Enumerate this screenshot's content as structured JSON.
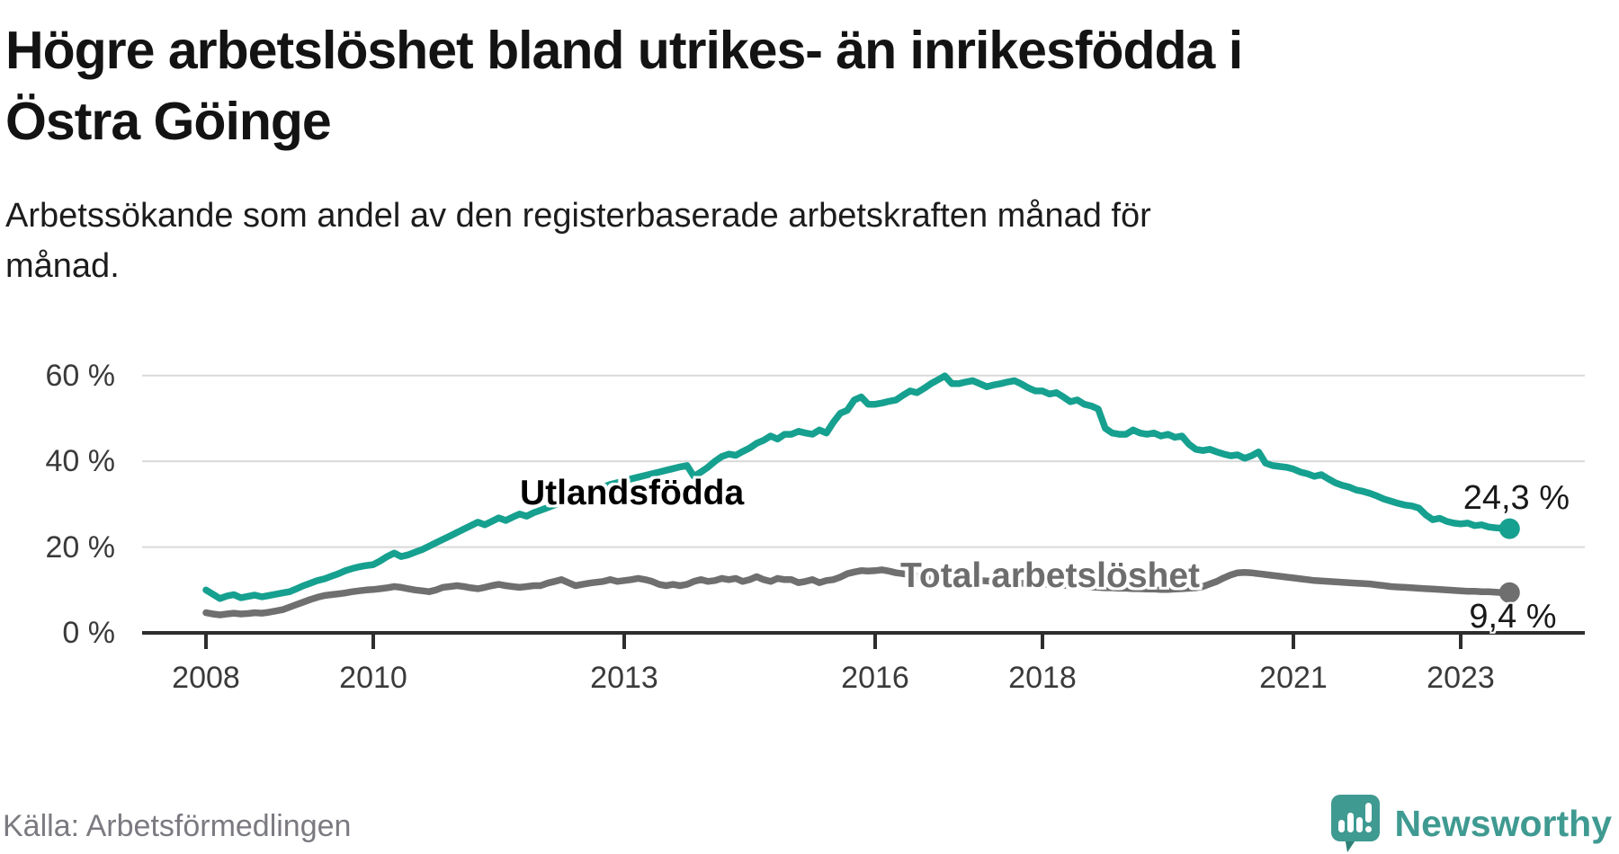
{
  "header": {
    "title_line1": "Högre arbetslöshet bland utrikes- än inrikesfödda i",
    "title_line2": "Östra Göinge",
    "subtitle_line1": "Arbetssökande som andel av den registerbaserade arbetskraften månad för",
    "subtitle_line2": "månad."
  },
  "footer": {
    "source": "Källa: Arbetsförmedlingen",
    "brand": "Newsworthy",
    "brand_color": "#3f9a91",
    "brand_icon": "speech-bubble-bar-chart"
  },
  "chart_data": {
    "type": "line",
    "title": "Högre arbetslöshet bland utrikes- än inrikesfödda i Östra Göinge",
    "subtitle": "Arbetssökande som andel av den registerbaserade arbetskraften månad för månad.",
    "unit": "%",
    "x_start_year": 2008,
    "x_start_month": 1,
    "x_end_year": 2023,
    "x_end_month": 8,
    "points_per_year": 12,
    "ylim": [
      0,
      63
    ],
    "grid": "horizontal",
    "grid_color": "#d9d9d9",
    "axis_color": "#2e2e2e",
    "y_ticks": [
      {
        "value": 0,
        "label": "0 %"
      },
      {
        "value": 20,
        "label": "20 %"
      },
      {
        "value": 40,
        "label": "40 %"
      },
      {
        "value": 60,
        "label": "60 %"
      }
    ],
    "x_ticks": [
      {
        "year": 2008,
        "label": "2008"
      },
      {
        "year": 2010,
        "label": "2010"
      },
      {
        "year": 2013,
        "label": "2013"
      },
      {
        "year": 2016,
        "label": "2016"
      },
      {
        "year": 2018,
        "label": "2018"
      },
      {
        "year": 2021,
        "label": "2021"
      },
      {
        "year": 2023,
        "label": "2023"
      }
    ],
    "series": [
      {
        "name": "Utlandsfödda",
        "color": "#16a08f",
        "end_label": "24,3 %",
        "end_value": 24.3,
        "values": [
          10.0,
          9.0,
          8.0,
          8.6,
          8.9,
          8.2,
          8.5,
          8.8,
          8.4,
          8.7,
          9.0,
          9.3,
          9.6,
          10.3,
          11.0,
          11.6,
          12.2,
          12.6,
          13.2,
          13.8,
          14.5,
          15.0,
          15.4,
          15.7,
          15.9,
          16.8,
          17.8,
          18.6,
          17.8,
          18.2,
          18.8,
          19.4,
          20.2,
          21.0,
          21.8,
          22.6,
          23.4,
          24.2,
          25.0,
          25.8,
          25.2,
          26.0,
          26.8,
          26.2,
          27.0,
          27.7,
          27.2,
          28.0,
          28.6,
          29.2,
          29.8,
          30.4,
          31.0,
          31.6,
          32.2,
          32.8,
          33.4,
          34.0,
          34.6,
          35.0,
          35.5,
          35.9,
          36.3,
          36.7,
          37.1,
          37.5,
          37.9,
          38.3,
          38.7,
          39.0,
          36.5,
          37.5,
          38.6,
          40.0,
          41.1,
          41.7,
          41.4,
          42.3,
          43.1,
          44.2,
          44.9,
          45.9,
          45.2,
          46.3,
          46.3,
          47.0,
          46.6,
          46.3,
          47.3,
          46.6,
          49.1,
          51.2,
          51.9,
          54.3,
          55.0,
          53.3,
          53.3,
          53.6,
          54.0,
          54.3,
          55.4,
          56.4,
          56.0,
          57.0,
          58.1,
          59.0,
          59.9,
          58.1,
          58.1,
          58.5,
          58.8,
          58.1,
          57.4,
          57.8,
          58.1,
          58.5,
          58.8,
          58.0,
          57.1,
          56.4,
          56.4,
          55.7,
          56.0,
          55.0,
          53.9,
          54.3,
          53.3,
          52.9,
          52.2,
          47.7,
          46.6,
          46.3,
          46.3,
          47.3,
          46.6,
          46.3,
          46.6,
          45.9,
          46.3,
          45.6,
          45.9,
          44.0,
          42.8,
          42.5,
          42.8,
          42.2,
          41.7,
          41.3,
          41.5,
          40.7,
          41.3,
          42.2,
          39.6,
          39.0,
          38.8,
          38.6,
          38.2,
          37.5,
          37.1,
          36.5,
          36.9,
          35.9,
          35.0,
          34.4,
          34.0,
          33.3,
          33.0,
          32.5,
          31.9,
          31.2,
          30.7,
          30.2,
          29.8,
          29.6,
          29.1,
          27.5,
          26.4,
          26.7,
          26.0,
          25.6,
          25.4,
          25.6,
          25.0,
          25.2,
          24.7,
          24.5,
          24.4,
          24.3
        ]
      },
      {
        "name": "Total arbetslöshet",
        "color": "#6f6f6f",
        "end_label": "9,4 %",
        "end_value": 9.4,
        "values": [
          4.7,
          4.4,
          4.2,
          4.4,
          4.6,
          4.4,
          4.5,
          4.7,
          4.6,
          4.8,
          5.1,
          5.4,
          6.0,
          6.6,
          7.2,
          7.8,
          8.3,
          8.7,
          8.9,
          9.1,
          9.3,
          9.6,
          9.8,
          10.0,
          10.1,
          10.3,
          10.5,
          10.8,
          10.6,
          10.3,
          10.0,
          9.8,
          9.6,
          10.0,
          10.6,
          10.8,
          11.0,
          10.8,
          10.5,
          10.3,
          10.6,
          11.0,
          11.3,
          11.0,
          10.8,
          10.6,
          10.8,
          11.0,
          11.0,
          11.6,
          12.0,
          12.4,
          11.7,
          11.0,
          11.3,
          11.6,
          11.8,
          12.0,
          12.4,
          12.0,
          12.2,
          12.4,
          12.7,
          12.4,
          12.0,
          11.3,
          11.0,
          11.3,
          11.0,
          11.3,
          12.0,
          12.4,
          12.0,
          12.2,
          12.7,
          12.4,
          12.7,
          12.0,
          12.4,
          13.1,
          12.4,
          12.0,
          12.7,
          12.4,
          12.4,
          11.7,
          12.0,
          12.4,
          11.7,
          12.2,
          12.4,
          13.0,
          13.8,
          14.2,
          14.5,
          14.4,
          14.5,
          14.7,
          14.4,
          14.0,
          13.8,
          13.5,
          13.2,
          13.0,
          12.8,
          12.7,
          12.6,
          12.5,
          12.5,
          12.4,
          12.3,
          12.2,
          12.1,
          12.0,
          11.9,
          11.8,
          11.7,
          11.6,
          11.5,
          11.5,
          11.4,
          11.3,
          11.2,
          11.1,
          11.0,
          10.9,
          10.8,
          10.7,
          10.6,
          10.5,
          10.5,
          10.4,
          10.4,
          10.3,
          10.3,
          10.2,
          10.2,
          10.1,
          10.1,
          10.2,
          10.3,
          10.4,
          10.5,
          10.8,
          11.4,
          12.0,
          12.8,
          13.5,
          14.0,
          14.1,
          14.0,
          13.8,
          13.6,
          13.4,
          13.2,
          13.0,
          12.8,
          12.6,
          12.4,
          12.2,
          12.1,
          12.0,
          11.9,
          11.8,
          11.7,
          11.6,
          11.5,
          11.4,
          11.2,
          11.0,
          10.8,
          10.7,
          10.6,
          10.5,
          10.4,
          10.3,
          10.2,
          10.1,
          10.0,
          9.9,
          9.8,
          9.7,
          9.7,
          9.6,
          9.6,
          9.5,
          9.4,
          9.4
        ]
      }
    ]
  }
}
